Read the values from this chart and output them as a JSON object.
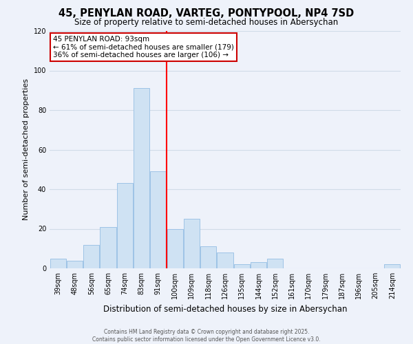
{
  "title": "45, PENYLAN ROAD, VARTEG, PONTYPOOL, NP4 7SD",
  "subtitle": "Size of property relative to semi-detached houses in Abersychan",
  "xlabel": "Distribution of semi-detached houses by size in Abersychan",
  "ylabel": "Number of semi-detached properties",
  "bar_labels": [
    "39sqm",
    "48sqm",
    "56sqm",
    "65sqm",
    "74sqm",
    "83sqm",
    "91sqm",
    "100sqm",
    "109sqm",
    "118sqm",
    "126sqm",
    "135sqm",
    "144sqm",
    "152sqm",
    "161sqm",
    "170sqm",
    "179sqm",
    "187sqm",
    "196sqm",
    "205sqm",
    "214sqm"
  ],
  "bar_values": [
    5,
    4,
    12,
    21,
    43,
    91,
    49,
    20,
    25,
    11,
    8,
    2,
    3,
    5,
    0,
    0,
    0,
    0,
    0,
    0,
    2
  ],
  "bar_color": "#cfe2f3",
  "bar_edge_color": "#9dc3e6",
  "vline_color": "red",
  "vline_index": 6,
  "ylim": [
    0,
    120
  ],
  "yticks": [
    0,
    20,
    40,
    60,
    80,
    100,
    120
  ],
  "annotation_title": "45 PENYLAN ROAD: 93sqm",
  "annotation_line1": "← 61% of semi-detached houses are smaller (179)",
  "annotation_line2": "36% of semi-detached houses are larger (106) →",
  "annotation_box_facecolor": "#ffffff",
  "annotation_box_edgecolor": "#cc0000",
  "footer1": "Contains HM Land Registry data © Crown copyright and database right 2025.",
  "footer2": "Contains public sector information licensed under the Open Government Licence v3.0.",
  "grid_color": "#d0dce8",
  "background_color": "#eef2fa",
  "title_fontsize": 10.5,
  "subtitle_fontsize": 8.5,
  "ylabel_fontsize": 8,
  "xlabel_fontsize": 8.5,
  "tick_fontsize": 7,
  "footer_fontsize": 5.5
}
